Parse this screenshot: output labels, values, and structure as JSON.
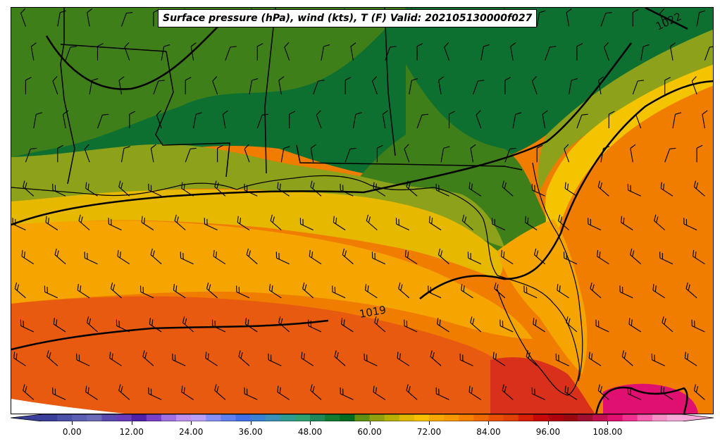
{
  "title": "Surface pressure (hPa), wind (kts), T (F) Valid: 202105130000f027",
  "contour_labels": [
    "1022",
    "1019"
  ],
  "colorbar": {
    "ticks": [
      "0.00",
      "12.00",
      "24.00",
      "36.00",
      "48.00",
      "60.00",
      "72.00",
      "84.00",
      "96.00",
      "108.00"
    ],
    "tick_values": [
      0,
      12,
      24,
      36,
      48,
      60,
      72,
      84,
      96,
      108
    ],
    "min": -6,
    "max": 123,
    "step": 3,
    "colors": [
      "#3a3f9c",
      "#4a4fa8",
      "#5a5fb4",
      "#6a6ab8",
      "#5a4ab0",
      "#6a3ab8",
      "#5020a8",
      "#7a40c8",
      "#a070e0",
      "#c090f0",
      "#b8a0f8",
      "#8890f8",
      "#6080f0",
      "#4070e8",
      "#3a80d0",
      "#3a90b8",
      "#309a90",
      "#30a070",
      "#208858",
      "#107a30",
      "#006a20",
      "#609010",
      "#90a010",
      "#b8b000",
      "#e0b800",
      "#f8c000",
      "#f8a800",
      "#f89800",
      "#f88000",
      "#f06800",
      "#e85000",
      "#e04000",
      "#d82000",
      "#c80808",
      "#b00010",
      "#9a0810",
      "#a01030",
      "#c01050",
      "#e01070",
      "#f03090",
      "#f860b0",
      "#f890c8",
      "#f8a8d8"
    ],
    "color_ramp_labels": [
      "blue-purple (cold)",
      "green (mid)",
      "yellow-orange (warm)",
      "red-pink (hot)"
    ]
  },
  "field_colors": {
    "dark_green": "#0d7030",
    "mid_green": "#3f7f1a",
    "olive": "#8da21a",
    "yellow": "#e6b800",
    "gold": "#f4c400",
    "orange": "#f5a400",
    "dark_orange": "#f07c00",
    "red_orange": "#e85a10",
    "red": "#d8301a",
    "magenta": "#e01070"
  }
}
